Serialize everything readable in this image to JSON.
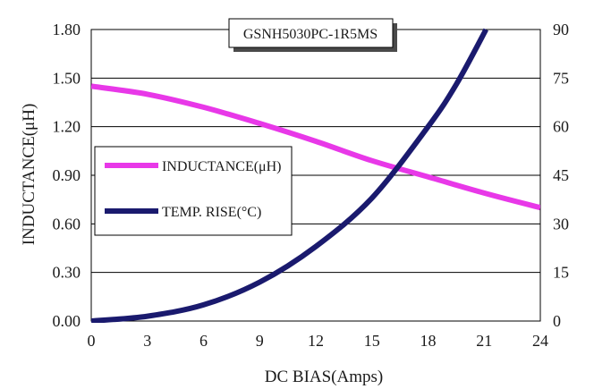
{
  "chart_data": {
    "type": "line",
    "title": "GSNH5030PC-1R5MS",
    "xlabel": "DC BIAS(Amps)",
    "ylabel": "INDUCTANCE(μH)",
    "y2label": "",
    "xlim": [
      0,
      24
    ],
    "ylim": [
      0,
      1.8
    ],
    "y2lim": [
      0,
      90
    ],
    "x_ticks": [
      "0",
      "3",
      "6",
      "9",
      "12",
      "15",
      "18",
      "21",
      "24"
    ],
    "y_ticks": [
      "0.00",
      "0.30",
      "0.60",
      "0.90",
      "1.20",
      "1.50",
      "1.80"
    ],
    "y2_ticks": [
      "0",
      "15",
      "30",
      "45",
      "60",
      "75",
      "90"
    ],
    "grid": "horizontal",
    "legend_position": "left",
    "series": [
      {
        "name": "INDUCTANCE(μH)",
        "axis": "left",
        "color": "#e838e8",
        "x": [
          0,
          3,
          6,
          9,
          12,
          15,
          18,
          21,
          24
        ],
        "y": [
          1.45,
          1.4,
          1.32,
          1.22,
          1.11,
          0.99,
          0.89,
          0.79,
          0.7
        ]
      },
      {
        "name": "TEMP. RISE(°C)",
        "axis": "right",
        "color": "#1a1a6e",
        "x": [
          0,
          3,
          6,
          9,
          12,
          15,
          18,
          19.5,
          21.1
        ],
        "y": [
          0,
          1.5,
          5,
          12,
          23,
          38,
          60,
          73,
          90
        ]
      }
    ]
  }
}
